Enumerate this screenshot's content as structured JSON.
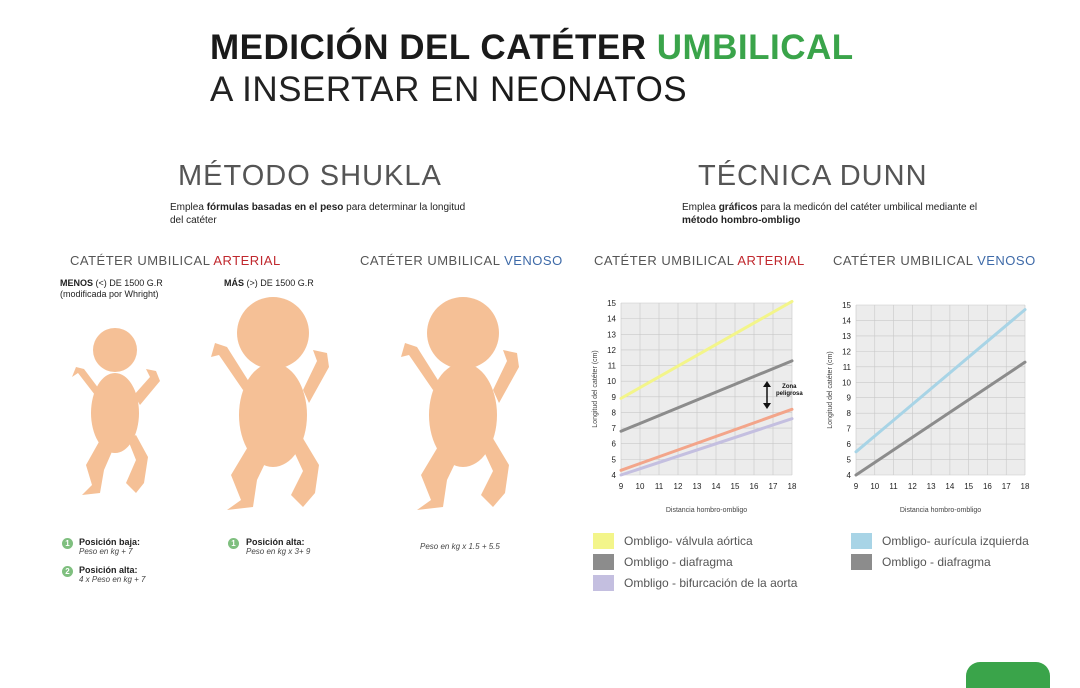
{
  "header": {
    "title_part1": "MEDICIÓN DEL CATÉTER ",
    "title_highlight": "UMBILICAL",
    "title_line2_part1": "A INSERTAR EN ",
    "title_line2_part2": "NEONATOS"
  },
  "shukla": {
    "title": "MÉTODO SHUKLA",
    "desc_1": "Emplea ",
    "desc_bold": "fórmulas basadas en el peso",
    "desc_2": " para determinar la longitud del catéter",
    "arterial_label": "CATÉTER UMBILICAL ",
    "arterial_word": "ARTERIAL",
    "venoso_label": "CATÉTER UMBILICAL ",
    "venoso_word": "VENOSO",
    "menos_bold": "MENOS",
    "menos_rest": " (<) DE 1500 G.R",
    "menos_line2": "(modificada por Whright)",
    "mas_bold": "MÁS",
    "mas_rest": " (>) DE 1500 G.R",
    "note1_num": "1",
    "note1_title": "Posición baja:",
    "note1_text": "Peso en kg + 7",
    "note2_num": "2",
    "note2_title": "Posición alta:",
    "note2_text": "4 x Peso en kg + 7",
    "note3_num": "1",
    "note3_title": "Posición alta:",
    "note3_text": "Peso en kg x 3+ 9",
    "venoso_formula": "Peso en kg x 1.5 + 5.5"
  },
  "dunn": {
    "title": "TÉCNICA DUNN",
    "desc_1": "Emplea ",
    "desc_bold1": "gráficos",
    "desc_2": " para la medicón del catéter umbilical mediante el ",
    "desc_bold2": "método hombro-ombligo",
    "arterial_label": "CATÉTER UMBILICAL ",
    "arterial_word": "ARTERIAL",
    "venoso_label": "CATÉTER UMBILICAL ",
    "venoso_word": "VENOSO",
    "zona_line1": "Zona",
    "zona_line2": "peligrosa"
  },
  "chart_data": [
    {
      "type": "line",
      "title": "CATÉTER UMBILICAL ARTERIAL",
      "xlabel": "Distancia hombro-ombligo",
      "ylabel": "Longitud del catéter (cm)",
      "xlim": [
        9,
        18
      ],
      "ylim": [
        4,
        15
      ],
      "x_ticks": [
        9,
        10,
        11,
        12,
        13,
        14,
        15,
        16,
        17,
        18
      ],
      "y_ticks": [
        4,
        5,
        6,
        7,
        8,
        9,
        10,
        11,
        12,
        13,
        14,
        15
      ],
      "grid": true,
      "series": [
        {
          "name": "Ombligo- válvula aórtica",
          "color": "#f3f58a",
          "x": [
            9,
            18
          ],
          "y": [
            8.9,
            15.1
          ]
        },
        {
          "name": "Ombligo - diafragma",
          "color": "#8c8c8c",
          "x": [
            9,
            18
          ],
          "y": [
            6.8,
            11.3
          ]
        },
        {
          "name": "Ombligo - bifurcación de la aorta",
          "color": "#c4bfe0",
          "x": [
            9,
            18
          ],
          "y": [
            4.0,
            7.6
          ]
        },
        {
          "name": "",
          "color": "#f3a58a",
          "x": [
            9,
            18
          ],
          "y": [
            4.3,
            8.2
          ]
        }
      ]
    },
    {
      "type": "line",
      "title": "CATÉTER UMBILICAL VENOSO",
      "xlabel": "Distancia hombro-ombligo",
      "ylabel": "Longitud del catéter (cm)",
      "xlim": [
        9,
        18
      ],
      "ylim": [
        4,
        15
      ],
      "x_ticks": [
        9,
        10,
        11,
        12,
        13,
        14,
        15,
        16,
        17,
        18
      ],
      "y_ticks": [
        4,
        5,
        6,
        7,
        8,
        9,
        10,
        11,
        12,
        13,
        14,
        15
      ],
      "grid": true,
      "series": [
        {
          "name": "Ombligo- aurícula izquierda",
          "color": "#a8d4e6",
          "x": [
            9,
            18
          ],
          "y": [
            5.5,
            14.7
          ]
        },
        {
          "name": "Ombligo - diafragma",
          "color": "#8c8c8c",
          "x": [
            9,
            18
          ],
          "y": [
            4.0,
            11.3
          ]
        }
      ]
    }
  ]
}
